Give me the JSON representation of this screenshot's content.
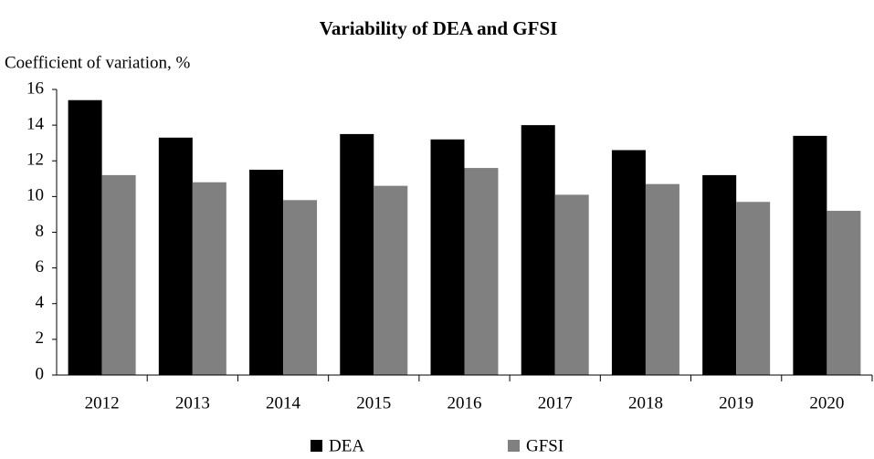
{
  "chart_data": {
    "type": "bar",
    "title": "Variability of DEA and GFSI",
    "y_label": "Coefficient of variation, %",
    "categories": [
      "2012",
      "2013",
      "2014",
      "2015",
      "2016",
      "2017",
      "2018",
      "2019",
      "2020"
    ],
    "series": [
      {
        "name": "DEA",
        "color": "#000000",
        "values": [
          15.4,
          13.3,
          11.5,
          13.5,
          13.2,
          14.0,
          12.6,
          11.2,
          13.4
        ]
      },
      {
        "name": "GFSI",
        "color": "#808080",
        "values": [
          11.2,
          10.8,
          9.8,
          10.6,
          11.6,
          10.1,
          10.7,
          9.7,
          9.2
        ]
      }
    ],
    "ylim": [
      0,
      16
    ],
    "yticks": [
      0,
      2,
      4,
      6,
      8,
      10,
      12,
      14,
      16
    ],
    "grid": false,
    "legend": "bottom"
  }
}
